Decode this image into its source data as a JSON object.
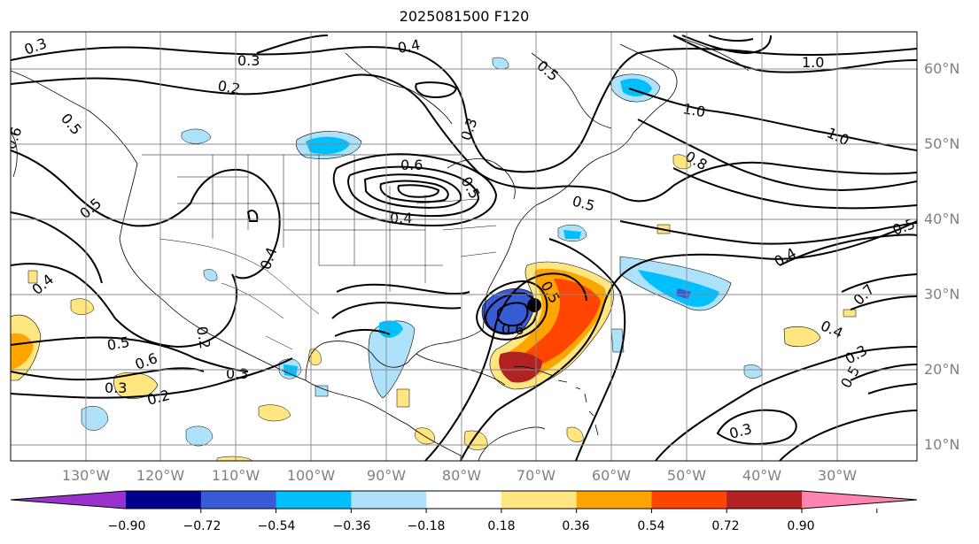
{
  "title": "2025081500 F120",
  "longitude_labels": [
    "130°W",
    "120°W",
    "110°W",
    "100°W",
    "90°W",
    "80°W",
    "70°W",
    "60°W",
    "50°W",
    "40°W",
    "30°W"
  ],
  "latitude_labels": [
    "60°N",
    "50°N",
    "40°N",
    "30°N",
    "20°N",
    "10°N"
  ],
  "colorbar": {
    "tick_labels": [
      "−0.90",
      "−0.72",
      "−0.54",
      "−0.36",
      "−0.18",
      "0.18",
      "0.36",
      "0.54",
      "0.72",
      "0.90"
    ],
    "colors": [
      "#9932cc",
      "#00008b",
      "#3a5bd6",
      "#00bfff",
      "#aee2fb",
      "#ffffff",
      "#ffe680",
      "#ffa500",
      "#ff4500",
      "#b22222",
      "#ff85b0"
    ]
  },
  "contour_labels": [
    {
      "id": "c1",
      "text": "0.3"
    },
    {
      "id": "c2",
      "text": "0.3"
    },
    {
      "id": "c3",
      "text": "0.2"
    },
    {
      "id": "c4",
      "text": "0.4"
    },
    {
      "id": "c5",
      "text": "0.5"
    },
    {
      "id": "c6",
      "text": "1.0"
    },
    {
      "id": "c7",
      "text": "1.0"
    },
    {
      "id": "c8",
      "text": "1.0"
    },
    {
      "id": "c9",
      "text": "0.8"
    },
    {
      "id": "c10",
      "text": "0.6"
    },
    {
      "id": "c11",
      "text": "0.5"
    },
    {
      "id": "c12",
      "text": "0.5"
    },
    {
      "id": "c13",
      "text": "0.4"
    },
    {
      "id": "c14",
      "text": "0.4"
    },
    {
      "id": "c15",
      "text": "0.5"
    },
    {
      "id": "c16",
      "text": "0.4"
    },
    {
      "id": "c17",
      "text": "0.5"
    },
    {
      "id": "c18",
      "text": "0.6"
    },
    {
      "id": "c19",
      "text": "0.3"
    },
    {
      "id": "c20",
      "text": "0.2"
    },
    {
      "id": "c21",
      "text": "0.3"
    },
    {
      "id": "c22",
      "text": "0.5"
    },
    {
      "id": "c23",
      "text": "0.6"
    },
    {
      "id": "c24",
      "text": "0.4"
    },
    {
      "id": "c25",
      "text": "0.3"
    },
    {
      "id": "c26",
      "text": "0.5"
    },
    {
      "id": "c27",
      "text": "0.3"
    },
    {
      "id": "c28",
      "text": "0.7"
    },
    {
      "id": "c29",
      "text": "0.4"
    },
    {
      "id": "c30",
      "text": "0.5"
    },
    {
      "id": "c31",
      "text": "0.2"
    },
    {
      "id": "c32",
      "text": "0.3"
    },
    {
      "id": "c33",
      "text": "0.6"
    },
    {
      "id": "c34",
      "text": "0.5"
    }
  ]
}
